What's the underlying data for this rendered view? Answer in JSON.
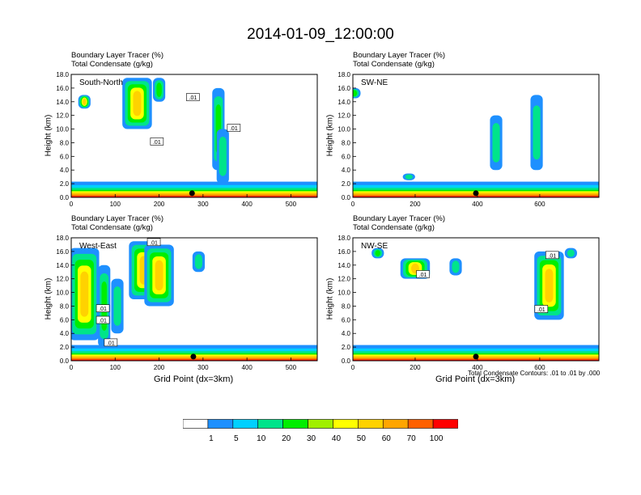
{
  "title": "2014-01-09_12:00:00",
  "panels": [
    {
      "id": "south-north",
      "section_label": "South-North",
      "xmax": 560,
      "xticks": [
        0,
        100,
        200,
        300,
        400,
        500
      ],
      "xlabel": "",
      "towers": [
        [
          30,
          13,
          15,
          0.7,
          0
        ],
        [
          150,
          10,
          17.5,
          0.8,
          1
        ],
        [
          200,
          14,
          17.5,
          0.6,
          0
        ],
        [
          335,
          4,
          16,
          0.55,
          0
        ],
        [
          345,
          2,
          10,
          0.3,
          0
        ]
      ],
      "contour_labels": [
        {
          "text": ".01",
          "x": 195,
          "y": 8
        },
        {
          "text": ".01",
          "x": 277,
          "y": 14.5
        },
        {
          "text": ".01",
          "x": 370,
          "y": 10
        }
      ],
      "marker_x": 275
    },
    {
      "id": "sw-ne",
      "section_label": "SW-NE",
      "xmax": 790,
      "xticks": [
        0,
        200,
        400,
        600
      ],
      "xlabel": "",
      "towers": [
        [
          5,
          14.5,
          16,
          0.6,
          0
        ],
        [
          180,
          2.5,
          3.5,
          0.3,
          0
        ],
        [
          460,
          4,
          12,
          0.35,
          0
        ],
        [
          590,
          4,
          15,
          0.25,
          0
        ]
      ],
      "contour_labels": [],
      "marker_x": 395
    },
    {
      "id": "west-east",
      "section_label": "West-East",
      "xmax": 560,
      "xticks": [
        0,
        100,
        200,
        300,
        400,
        500
      ],
      "xlabel": "Grid Point (dx=3km)",
      "towers": [
        [
          30,
          3,
          16.5,
          0.7,
          1
        ],
        [
          75,
          2,
          14,
          0.5,
          0
        ],
        [
          105,
          4,
          12,
          0.3,
          0
        ],
        [
          165,
          9,
          17.5,
          0.85,
          1
        ],
        [
          200,
          8,
          17,
          0.7,
          1
        ],
        [
          290,
          13,
          16,
          0.3,
          0
        ]
      ],
      "contour_labels": [
        {
          "text": ".01",
          "x": 188,
          "y": 17.2
        },
        {
          "text": ".01",
          "x": 72,
          "y": 7.5
        },
        {
          "text": ".01",
          "x": 90,
          "y": 2.5
        },
        {
          "text": ".01",
          "x": 72,
          "y": 5.8
        }
      ],
      "marker_x": 278
    },
    {
      "id": "nw-se",
      "section_label": "NW-SE",
      "xmax": 790,
      "xticks": [
        0,
        200,
        400,
        600
      ],
      "xlabel": "Grid Point (dx=3km)",
      "towers": [
        [
          80,
          15,
          16.5,
          0.5,
          0
        ],
        [
          200,
          12,
          15,
          0.7,
          1
        ],
        [
          330,
          12.5,
          15,
          0.3,
          0
        ],
        [
          630,
          6,
          16,
          0.85,
          1
        ],
        [
          700,
          15,
          16.5,
          0.4,
          0
        ]
      ],
      "contour_labels": [
        {
          "text": ".01",
          "x": 640,
          "y": 15.3
        },
        {
          "text": ".01",
          "x": 225,
          "y": 12.5
        },
        {
          "text": ".01",
          "x": 605,
          "y": 7.4
        }
      ],
      "marker_x": 395
    }
  ],
  "tracer_label": "Boundary Layer Tracer    (%)",
  "condensate_label": "Total Condensate    (g/kg)",
  "ylabel": "Height (km)",
  "yticks": [
    "0.0",
    "2.0",
    "4.0",
    "6.0",
    "8.0",
    "10.0",
    "12.0",
    "14.0",
    "16.0",
    "18.0"
  ],
  "ylim": [
    0,
    18
  ],
  "contour_note": "Total Condensate Contours: .01 to .01 by .000",
  "colorbar": {
    "colors": [
      "#ffffff",
      "#1e90ff",
      "#00d0ff",
      "#00e48a",
      "#00ee00",
      "#a0f000",
      "#ffff00",
      "#ffd200",
      "#ffa500",
      "#ff6000",
      "#ff0000"
    ],
    "labels": [
      "1",
      "5",
      "10",
      "20",
      "30",
      "40",
      "50",
      "60",
      "70",
      "100"
    ]
  },
  "chart_data": {
    "type": "heatmap",
    "title": "2014-01-09_12:00:00",
    "variable": "Boundary Layer Tracer (%) with Total Condensate (g/kg) contours",
    "ylabel": "Height (km)",
    "xlabel": "Grid Point (dx=3km)",
    "ylim": [
      0,
      18
    ],
    "color_levels": [
      1,
      5,
      10,
      20,
      30,
      40,
      50,
      60,
      70,
      100
    ],
    "contour_levels": [
      0.01
    ],
    "panels": [
      {
        "name": "South-North",
        "xlim": [
          0,
          560
        ]
      },
      {
        "name": "SW-NE",
        "xlim": [
          0,
          790
        ]
      },
      {
        "name": "West-East",
        "xlim": [
          0,
          560
        ]
      },
      {
        "name": "NW-SE",
        "xlim": [
          0,
          790
        ]
      }
    ]
  }
}
